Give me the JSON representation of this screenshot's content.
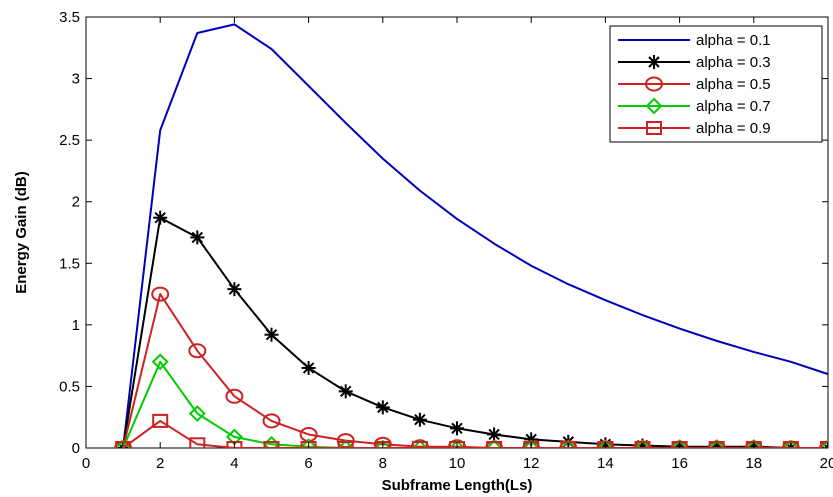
{
  "chart_data": {
    "type": "line",
    "xlabel": "Subframe Length(Ls)",
    "ylabel": "Energy Gain (dB)",
    "xlim": [
      0,
      20
    ],
    "ylim": [
      0,
      3.5
    ],
    "xticks": [
      "0",
      "2",
      "4",
      "6",
      "8",
      "10",
      "12",
      "14",
      "16",
      "18",
      "20"
    ],
    "yticks": [
      "0",
      "0.5",
      "1",
      "1.5",
      "2",
      "2.5",
      "3",
      "3.5"
    ],
    "grid": false,
    "legend_position": "top-right",
    "series": [
      {
        "name": "alpha = 0.1",
        "color": "#0000bb",
        "marker": "none",
        "x": [
          1,
          2,
          3,
          4,
          5,
          6,
          7,
          8,
          9,
          10,
          11,
          12,
          13,
          14,
          15,
          16,
          17,
          18,
          19,
          20
        ],
        "y": [
          0,
          2.58,
          3.37,
          3.44,
          3.24,
          2.94,
          2.64,
          2.35,
          2.09,
          1.86,
          1.66,
          1.48,
          1.33,
          1.2,
          1.08,
          0.97,
          0.87,
          0.78,
          0.7,
          0.6
        ]
      },
      {
        "name": "alpha = 0.3",
        "color": "#000000",
        "marker": "asterisk",
        "x": [
          1,
          2,
          3,
          4,
          5,
          6,
          7,
          8,
          9,
          10,
          11,
          12,
          13,
          14,
          15,
          16,
          17,
          18,
          19,
          20
        ],
        "y": [
          0,
          1.87,
          1.71,
          1.29,
          0.92,
          0.65,
          0.46,
          0.33,
          0.23,
          0.16,
          0.11,
          0.07,
          0.05,
          0.03,
          0.02,
          0.01,
          0.01,
          0.01,
          0,
          0
        ]
      },
      {
        "name": "alpha = 0.5",
        "color": "#cc2222",
        "marker": "circle",
        "x": [
          1,
          2,
          3,
          4,
          5,
          6,
          7,
          8,
          9,
          10,
          11,
          12,
          13,
          14,
          15,
          16,
          17,
          18,
          19,
          20
        ],
        "y": [
          0,
          1.25,
          0.79,
          0.42,
          0.22,
          0.11,
          0.06,
          0.03,
          0.01,
          0.01,
          0,
          0,
          0,
          0,
          0,
          0,
          0,
          0,
          0,
          0
        ]
      },
      {
        "name": "alpha = 0.7",
        "color": "#00cc00",
        "marker": "diamond",
        "x": [
          1,
          2,
          3,
          4,
          5,
          6,
          7,
          8,
          9,
          10,
          11,
          12,
          13,
          14,
          15,
          16,
          17,
          18,
          19,
          20
        ],
        "y": [
          0,
          0.7,
          0.28,
          0.09,
          0.03,
          0.01,
          0,
          0,
          0,
          0,
          0,
          0,
          0,
          0,
          0,
          0,
          0,
          0,
          0,
          0
        ]
      },
      {
        "name": "alpha = 0.9",
        "color": "#cc2222",
        "marker": "square",
        "x": [
          1,
          2,
          3,
          4,
          5,
          6,
          7,
          8,
          9,
          10,
          11,
          12,
          13,
          14,
          15,
          16,
          17,
          18,
          19,
          20
        ],
        "y": [
          0,
          0.22,
          0.03,
          0,
          0,
          0,
          0,
          0,
          0,
          0,
          0,
          0,
          0,
          0,
          0,
          0,
          0,
          0,
          0,
          0
        ]
      }
    ]
  }
}
